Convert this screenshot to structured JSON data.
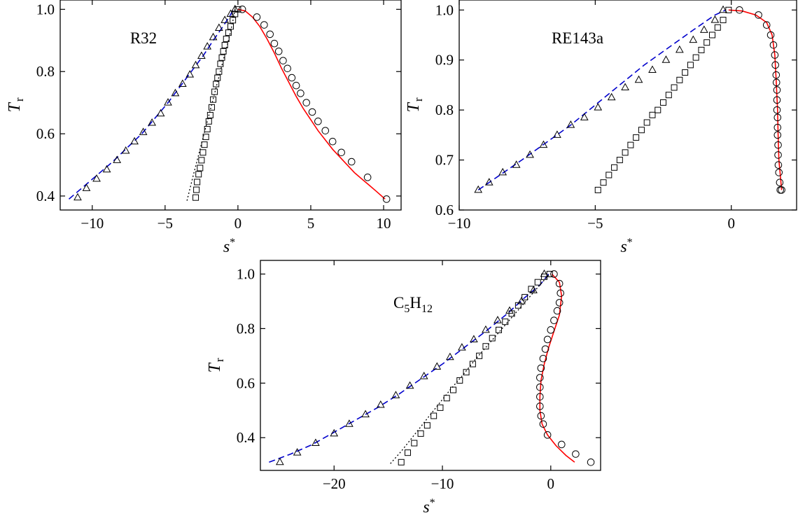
{
  "figure": {
    "panels": [
      "R32",
      "RE143a",
      "C5H12"
    ]
  },
  "chart_data": [
    {
      "type": "line",
      "title": "R32",
      "xlabel": "s*",
      "ylabel": "T_r",
      "xlim": [
        -12.2,
        11.2
      ],
      "ylim": [
        0.355,
        1.03
      ],
      "xticks": [
        -10,
        -5,
        0,
        5,
        10
      ],
      "xtick_labels": [
        "−10",
        "−5",
        "0",
        "5",
        "10"
      ],
      "yticks": [
        0.4,
        0.6,
        0.8,
        1.0
      ],
      "ytick_labels": [
        "0.4",
        "0.6",
        "0.8",
        "1.0"
      ],
      "grid": false,
      "legend": "none",
      "series": [
        {
          "style": "dashed",
          "color": "#0000cc",
          "x": [
            -11.6,
            -10.6,
            -9.6,
            -8.6,
            -7.6,
            -6.6,
            -5.7,
            -4.8,
            -4.0,
            -3.2,
            -2.4,
            -1.7,
            -1.1,
            -0.6,
            -0.3
          ],
          "y": [
            0.39,
            0.43,
            0.47,
            0.51,
            0.555,
            0.6,
            0.65,
            0.7,
            0.75,
            0.8,
            0.85,
            0.9,
            0.94,
            0.975,
            1.0
          ]
        },
        {
          "style": "dotted",
          "color": "#000000",
          "x": [
            -3.5,
            -3.1,
            -2.6,
            -2.1,
            -1.6,
            -1.1,
            -0.7,
            -0.4,
            -0.2
          ],
          "y": [
            0.385,
            0.46,
            0.55,
            0.64,
            0.73,
            0.82,
            0.89,
            0.95,
            1.0
          ]
        },
        {
          "style": "solid",
          "color": "#ff0000",
          "x": [
            0.0,
            0.5,
            1.0,
            1.5,
            2.0,
            2.5,
            3.0,
            3.5,
            4.0,
            4.5,
            5.0,
            5.5,
            6.0,
            6.5,
            7.0,
            7.5,
            8.0,
            8.5,
            9.0,
            9.5,
            10.1
          ],
          "y": [
            1.0,
            0.995,
            0.975,
            0.945,
            0.905,
            0.86,
            0.81,
            0.765,
            0.72,
            0.68,
            0.645,
            0.61,
            0.58,
            0.55,
            0.525,
            0.5,
            0.475,
            0.455,
            0.435,
            0.415,
            0.39
          ]
        },
        {
          "style": "triangle",
          "color": "#000000",
          "x": [
            -11.0,
            -10.4,
            -9.7,
            -9.0,
            -8.3,
            -7.7,
            -7.1,
            -6.5,
            -5.9,
            -5.3,
            -4.8,
            -4.3,
            -3.8,
            -3.3,
            -2.9,
            -2.5,
            -2.1,
            -1.7,
            -1.3,
            -0.9,
            -0.5,
            -0.2
          ],
          "y": [
            0.395,
            0.425,
            0.455,
            0.485,
            0.515,
            0.545,
            0.575,
            0.605,
            0.635,
            0.665,
            0.7,
            0.73,
            0.76,
            0.79,
            0.82,
            0.85,
            0.88,
            0.91,
            0.94,
            0.965,
            0.985,
            1.0
          ]
        },
        {
          "style": "square",
          "color": "#000000",
          "x": [
            -2.9,
            -2.85,
            -2.8,
            -2.7,
            -2.6,
            -2.5,
            -2.4,
            -2.3,
            -2.2,
            -2.1,
            -2.0,
            -1.9,
            -1.8,
            -1.7,
            -1.6,
            -1.5,
            -1.4,
            -1.3,
            -1.2,
            -1.1,
            -1.0,
            -0.9,
            -0.8,
            -0.65,
            -0.5,
            -0.35,
            -0.2,
            0.0
          ],
          "y": [
            0.395,
            0.42,
            0.445,
            0.47,
            0.49,
            0.515,
            0.54,
            0.565,
            0.59,
            0.615,
            0.64,
            0.66,
            0.685,
            0.71,
            0.735,
            0.76,
            0.78,
            0.8,
            0.825,
            0.845,
            0.865,
            0.885,
            0.905,
            0.925,
            0.945,
            0.965,
            0.985,
            1.0
          ]
        },
        {
          "style": "circle",
          "color": "#000000",
          "x": [
            0.3,
            1.3,
            1.8,
            2.2,
            2.5,
            2.8,
            3.1,
            3.4,
            3.7,
            4.0,
            4.3,
            4.7,
            5.1,
            5.5,
            6.0,
            6.5,
            7.1,
            7.8,
            8.9,
            10.2
          ],
          "y": [
            1.0,
            0.975,
            0.95,
            0.92,
            0.89,
            0.865,
            0.835,
            0.81,
            0.78,
            0.755,
            0.73,
            0.7,
            0.67,
            0.64,
            0.61,
            0.575,
            0.54,
            0.51,
            0.46,
            0.39
          ]
        }
      ]
    },
    {
      "type": "line",
      "title": "RE143a",
      "xlabel": "s*",
      "ylabel": "T_r",
      "xlim": [
        -10.0,
        2.4
      ],
      "ylim": [
        0.6,
        1.02
      ],
      "xticks": [
        -10,
        -5,
        0
      ],
      "xtick_labels": [
        "−10",
        "−5",
        "0"
      ],
      "yticks": [
        0.6,
        0.7,
        0.8,
        0.9,
        1.0
      ],
      "ytick_labels": [
        "0.6",
        "0.7",
        "0.8",
        "0.9",
        "1.0"
      ],
      "grid": false,
      "legend": "none",
      "series": [
        {
          "style": "dashed",
          "color": "#0000cc",
          "x": [
            -9.3,
            -8.5,
            -7.7,
            -6.8,
            -5.9,
            -5.0,
            -4.1,
            -3.2,
            -2.3,
            -1.4,
            -0.6,
            -0.2
          ],
          "y": [
            0.64,
            0.67,
            0.7,
            0.735,
            0.77,
            0.81,
            0.85,
            0.89,
            0.925,
            0.96,
            0.99,
            1.0
          ]
        },
        {
          "style": "solid",
          "color": "#ff0000",
          "x": [
            -0.1,
            0.4,
            0.9,
            1.3,
            1.5,
            1.6,
            1.65,
            1.7,
            1.72,
            1.75,
            1.8,
            1.85
          ],
          "y": [
            1.0,
            0.998,
            0.99,
            0.975,
            0.95,
            0.91,
            0.86,
            0.8,
            0.75,
            0.7,
            0.67,
            0.64
          ]
        },
        {
          "style": "triangle",
          "color": "#000000",
          "x": [
            -9.3,
            -8.9,
            -8.4,
            -7.9,
            -7.4,
            -6.9,
            -6.4,
            -5.9,
            -5.4,
            -4.9,
            -4.4,
            -3.9,
            -3.4,
            -2.9,
            -2.4,
            -1.9,
            -1.4,
            -1.0,
            -0.6,
            -0.3
          ],
          "y": [
            0.64,
            0.655,
            0.675,
            0.69,
            0.71,
            0.73,
            0.75,
            0.77,
            0.785,
            0.805,
            0.825,
            0.845,
            0.86,
            0.88,
            0.9,
            0.92,
            0.94,
            0.96,
            0.98,
            1.0
          ]
        },
        {
          "style": "square",
          "color": "#000000",
          "x": [
            -4.9,
            -4.7,
            -4.5,
            -4.3,
            -4.1,
            -3.9,
            -3.7,
            -3.5,
            -3.3,
            -3.1,
            -2.9,
            -2.7,
            -2.5,
            -2.3,
            -2.1,
            -1.9,
            -1.7,
            -1.5,
            -1.3,
            -1.1,
            -0.9,
            -0.7,
            -0.5,
            -0.3,
            -0.1
          ],
          "y": [
            0.64,
            0.655,
            0.67,
            0.685,
            0.7,
            0.715,
            0.73,
            0.745,
            0.76,
            0.775,
            0.79,
            0.8,
            0.815,
            0.83,
            0.845,
            0.86,
            0.875,
            0.89,
            0.905,
            0.92,
            0.935,
            0.95,
            0.965,
            0.98,
            1.0
          ]
        },
        {
          "style": "circle",
          "color": "#000000",
          "x": [
            0.3,
            1.0,
            1.3,
            1.45,
            1.55,
            1.6,
            1.62,
            1.65,
            1.66,
            1.68,
            1.68,
            1.68,
            1.7,
            1.7,
            1.7,
            1.72,
            1.72,
            1.73,
            1.75,
            1.78,
            1.8,
            1.85
          ],
          "y": [
            1.0,
            0.99,
            0.97,
            0.95,
            0.93,
            0.91,
            0.89,
            0.87,
            0.855,
            0.84,
            0.82,
            0.8,
            0.785,
            0.765,
            0.75,
            0.73,
            0.71,
            0.69,
            0.675,
            0.655,
            0.64,
            0.64
          ]
        }
      ]
    },
    {
      "type": "line",
      "title": "C5H12",
      "title_base": "C",
      "title_sub1": "5",
      "title_mid": "H",
      "title_sub2": "12",
      "xlabel": "s*",
      "ylabel": "T_r",
      "xlim": [
        -26.8,
        4.6
      ],
      "ylim": [
        0.28,
        1.05
      ],
      "xticks": [
        -20,
        -10,
        0
      ],
      "xtick_labels": [
        "−20",
        "−10",
        "0"
      ],
      "yticks": [
        0.4,
        0.6,
        0.8,
        1.0
      ],
      "ytick_labels": [
        "0.4",
        "0.6",
        "0.8",
        "1.0"
      ],
      "grid": false,
      "legend": "none",
      "series": [
        {
          "style": "dashed",
          "color": "#0000cc",
          "x": [
            -26.0,
            -24.0,
            -22.0,
            -20.0,
            -18.0,
            -16.0,
            -14.0,
            -12.0,
            -10.0,
            -8.0,
            -6.0,
            -4.0,
            -2.5,
            -1.0,
            -0.2
          ],
          "y": [
            0.31,
            0.34,
            0.375,
            0.42,
            0.465,
            0.51,
            0.56,
            0.615,
            0.67,
            0.73,
            0.79,
            0.855,
            0.91,
            0.96,
            1.0
          ]
        },
        {
          "style": "dotted",
          "color": "#000000",
          "x": [
            -14.8,
            -13.8,
            -12.6,
            -11.5,
            -10.4,
            -9.3,
            -8.1,
            -7.0,
            -5.8,
            -4.6,
            -3.4,
            -2.2,
            -1.0,
            -0.1
          ],
          "y": [
            0.305,
            0.35,
            0.41,
            0.465,
            0.52,
            0.575,
            0.63,
            0.685,
            0.74,
            0.795,
            0.85,
            0.905,
            0.96,
            1.0
          ]
        },
        {
          "style": "solid",
          "color": "#ff0000",
          "x": [
            0.1,
            0.8,
            1.0,
            0.8,
            0.3,
            -0.2,
            -0.6,
            -0.9,
            -1.0,
            -1.0,
            -0.8,
            -0.3,
            0.5,
            1.4,
            2.2
          ],
          "y": [
            1.0,
            0.97,
            0.92,
            0.85,
            0.79,
            0.73,
            0.67,
            0.61,
            0.55,
            0.5,
            0.45,
            0.41,
            0.37,
            0.335,
            0.31
          ]
        },
        {
          "style": "triangle",
          "color": "#000000",
          "x": [
            -25.0,
            -23.4,
            -21.7,
            -20.0,
            -18.6,
            -17.1,
            -15.7,
            -14.3,
            -13.0,
            -11.7,
            -10.5,
            -9.3,
            -8.2,
            -7.1,
            -6.0,
            -4.9,
            -3.8,
            -2.7,
            -1.6,
            -0.6
          ],
          "y": [
            0.31,
            0.345,
            0.38,
            0.415,
            0.45,
            0.485,
            0.52,
            0.555,
            0.59,
            0.625,
            0.66,
            0.695,
            0.73,
            0.76,
            0.795,
            0.83,
            0.865,
            0.9,
            0.94,
            1.0
          ]
        },
        {
          "style": "square",
          "color": "#000000",
          "x": [
            -13.8,
            -13.2,
            -12.6,
            -12.0,
            -11.4,
            -10.8,
            -10.2,
            -9.6,
            -9.0,
            -8.4,
            -7.8,
            -7.2,
            -6.6,
            -6.0,
            -5.4,
            -4.8,
            -4.2,
            -3.6,
            -3.0,
            -2.4,
            -1.8,
            -1.2,
            -0.6,
            -0.1
          ],
          "y": [
            0.31,
            0.345,
            0.38,
            0.415,
            0.445,
            0.48,
            0.51,
            0.545,
            0.575,
            0.61,
            0.64,
            0.67,
            0.7,
            0.735,
            0.765,
            0.795,
            0.825,
            0.855,
            0.885,
            0.915,
            0.945,
            0.97,
            0.99,
            1.0
          ]
        },
        {
          "style": "circle",
          "color": "#000000",
          "x": [
            0.3,
            0.8,
            0.9,
            0.8,
            0.6,
            0.3,
            0.0,
            -0.3,
            -0.5,
            -0.7,
            -0.9,
            -1.0,
            -1.0,
            -1.0,
            -1.0,
            -0.9,
            -0.7,
            -0.3,
            1.0,
            2.3,
            3.7
          ],
          "y": [
            1.0,
            0.965,
            0.93,
            0.895,
            0.865,
            0.83,
            0.795,
            0.76,
            0.725,
            0.69,
            0.655,
            0.62,
            0.585,
            0.55,
            0.515,
            0.48,
            0.45,
            0.41,
            0.375,
            0.34,
            0.31
          ]
        }
      ]
    }
  ]
}
